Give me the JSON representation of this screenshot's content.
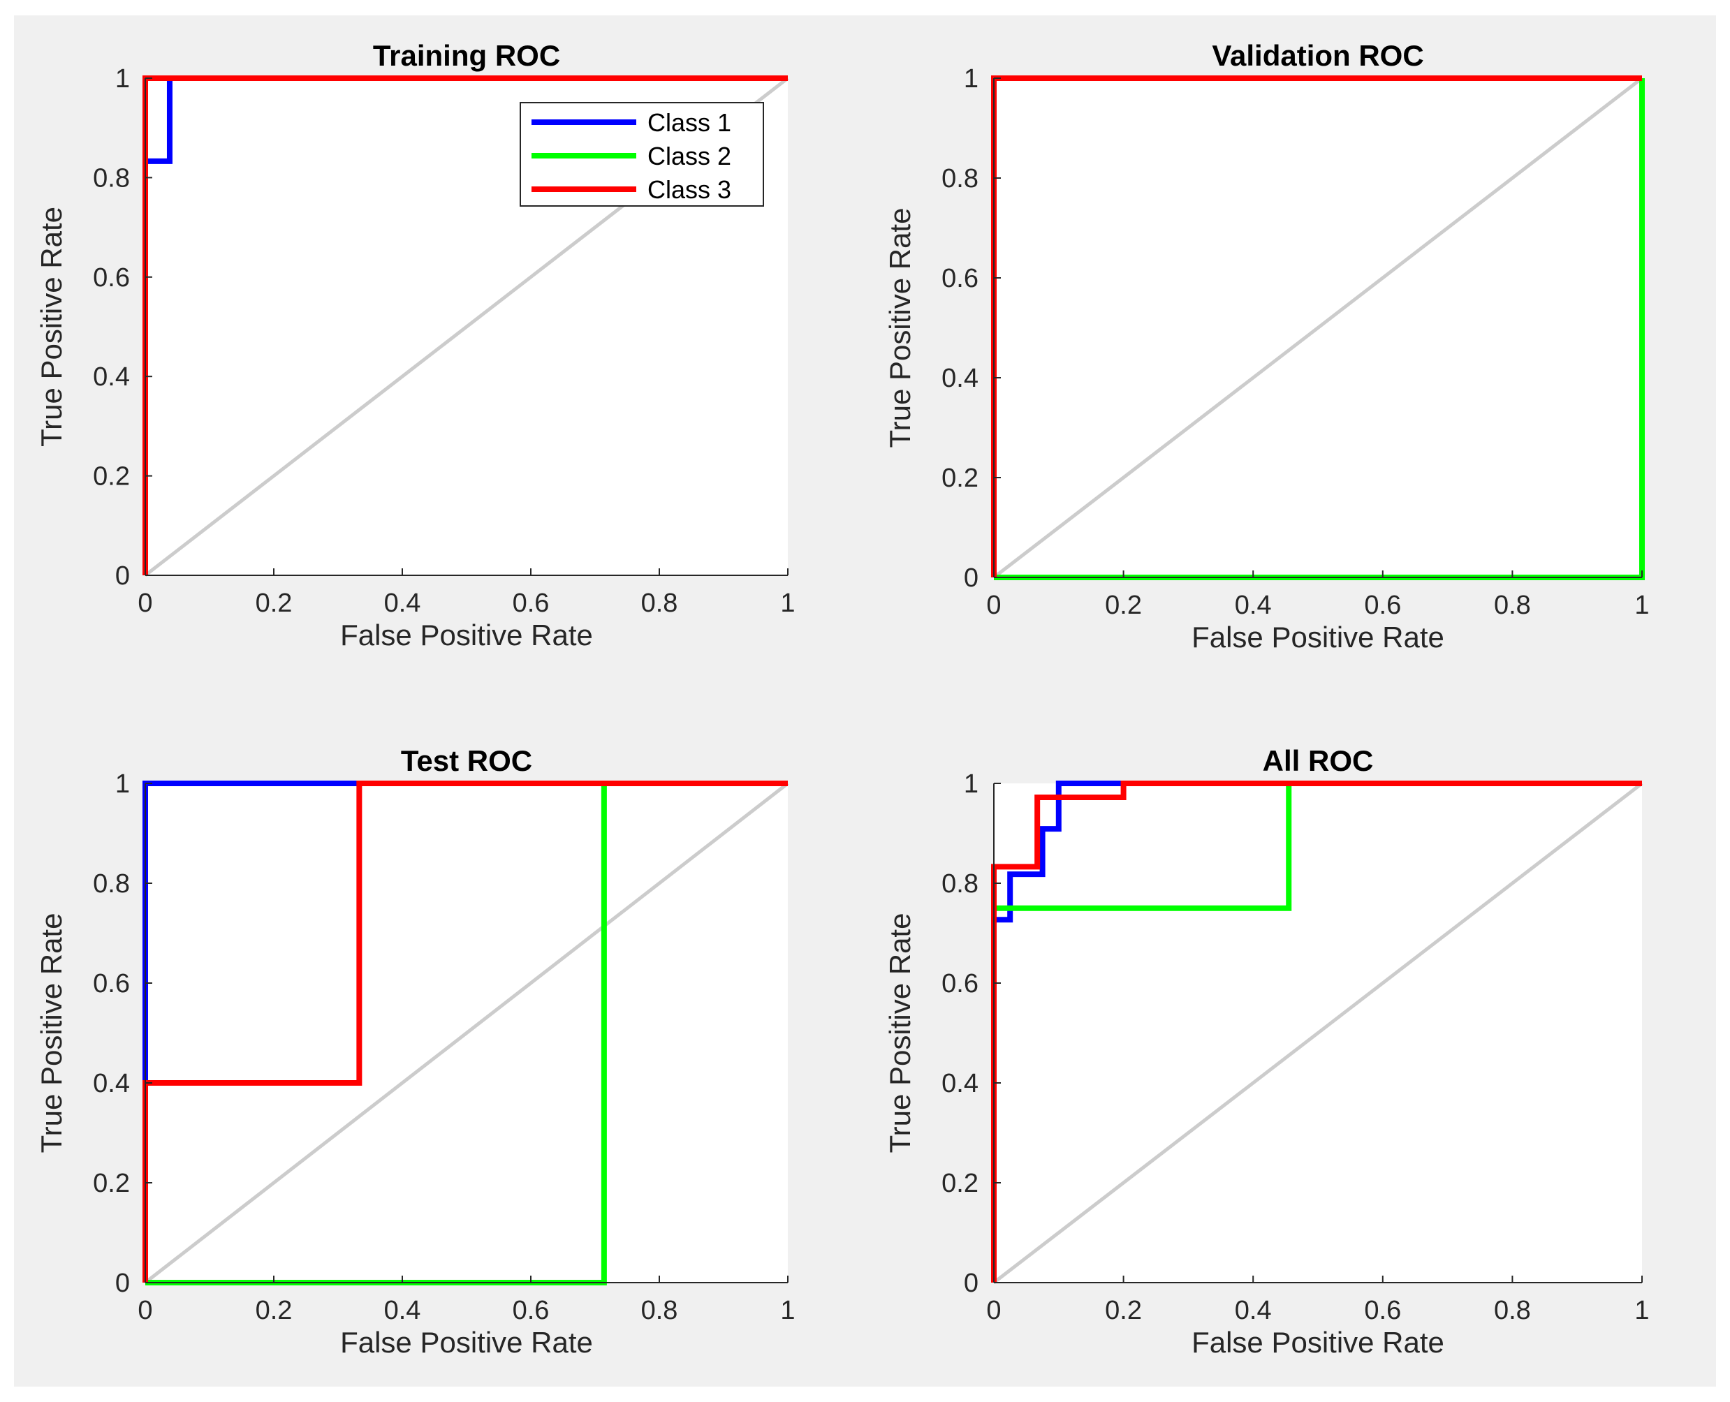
{
  "chart_data": [
    {
      "type": "line",
      "title": "Training ROC",
      "xlabel": "False Positive Rate",
      "ylabel": "True Positive Rate",
      "xlim": [
        0,
        1
      ],
      "ylim": [
        0,
        1
      ],
      "xticks": [
        "0",
        "0.2",
        "0.4",
        "0.6",
        "0.8",
        "1"
      ],
      "yticks": [
        "0",
        "0.2",
        "0.4",
        "0.6",
        "0.8",
        "1"
      ],
      "grid": false,
      "legend": {
        "position": "top-right",
        "entries": [
          "Class 1",
          "Class 2",
          "Class 3"
        ]
      },
      "series": [
        {
          "name": "Class 1",
          "color": "#0000ff",
          "points": [
            [
              0,
              0
            ],
            [
              0,
              0.833
            ],
            [
              0.038,
              0.833
            ],
            [
              0.038,
              1
            ],
            [
              1,
              1
            ]
          ]
        },
        {
          "name": "Class 2",
          "color": "#00ff00",
          "points": [
            [
              0,
              0
            ],
            [
              0,
              1
            ],
            [
              1,
              1
            ]
          ]
        },
        {
          "name": "Class 3",
          "color": "#ff0000",
          "points": [
            [
              0,
              0
            ],
            [
              0,
              1
            ],
            [
              1,
              1
            ]
          ]
        }
      ]
    },
    {
      "type": "line",
      "title": "Validation ROC",
      "xlabel": "False Positive Rate",
      "ylabel": "True Positive Rate",
      "xlim": [
        0,
        1
      ],
      "ylim": [
        0,
        1
      ],
      "xticks": [
        "0",
        "0.2",
        "0.4",
        "0.6",
        "0.8",
        "1"
      ],
      "yticks": [
        "0",
        "0.2",
        "0.4",
        "0.6",
        "0.8",
        "1"
      ],
      "grid": false,
      "series": [
        {
          "name": "Class 1",
          "color": "#0000ff",
          "points": [
            [
              0,
              0
            ],
            [
              0,
              1
            ],
            [
              1,
              1
            ]
          ]
        },
        {
          "name": "Class 2",
          "color": "#00ff00",
          "points": [
            [
              0,
              0
            ],
            [
              1,
              0
            ],
            [
              1,
              1
            ]
          ]
        },
        {
          "name": "Class 3",
          "color": "#ff0000",
          "points": [
            [
              0,
              0
            ],
            [
              0,
              1
            ],
            [
              1,
              1
            ]
          ]
        }
      ]
    },
    {
      "type": "line",
      "title": "Test ROC",
      "xlabel": "False Positive Rate",
      "ylabel": "True Positive Rate",
      "xlim": [
        0,
        1
      ],
      "ylim": [
        0,
        1
      ],
      "xticks": [
        "0",
        "0.2",
        "0.4",
        "0.6",
        "0.8",
        "1"
      ],
      "yticks": [
        "0",
        "0.2",
        "0.4",
        "0.6",
        "0.8",
        "1"
      ],
      "grid": false,
      "series": [
        {
          "name": "Class 1",
          "color": "#0000ff",
          "points": [
            [
              0,
              0
            ],
            [
              0,
              1
            ],
            [
              1,
              1
            ]
          ]
        },
        {
          "name": "Class 2",
          "color": "#00ff00",
          "points": [
            [
              0,
              0
            ],
            [
              0.714,
              0
            ],
            [
              0.714,
              1
            ],
            [
              1,
              1
            ]
          ]
        },
        {
          "name": "Class 3",
          "color": "#ff0000",
          "points": [
            [
              0,
              0
            ],
            [
              0,
              0.4
            ],
            [
              0.333,
              0.4
            ],
            [
              0.333,
              1
            ],
            [
              1,
              1
            ]
          ]
        }
      ]
    },
    {
      "type": "line",
      "title": "All ROC",
      "xlabel": "False Positive Rate",
      "ylabel": "True Positive Rate",
      "xlim": [
        0,
        1
      ],
      "ylim": [
        0,
        1
      ],
      "xticks": [
        "0",
        "0.2",
        "0.4",
        "0.6",
        "0.8",
        "1"
      ],
      "yticks": [
        "0",
        "0.2",
        "0.4",
        "0.6",
        "0.8",
        "1"
      ],
      "grid": false,
      "series": [
        {
          "name": "Class 1",
          "color": "#0000ff",
          "points": [
            [
              0,
              0
            ],
            [
              0,
              0.727
            ],
            [
              0.025,
              0.727
            ],
            [
              0.025,
              0.818
            ],
            [
              0.075,
              0.818
            ],
            [
              0.075,
              0.909
            ],
            [
              0.1,
              0.909
            ],
            [
              0.1,
              1
            ],
            [
              1,
              1
            ]
          ]
        },
        {
          "name": "Class 2",
          "color": "#00ff00",
          "points": [
            [
              0,
              0
            ],
            [
              0,
              0.75
            ],
            [
              0.455,
              0.75
            ],
            [
              0.455,
              1
            ],
            [
              1,
              1
            ]
          ]
        },
        {
          "name": "Class 3",
          "color": "#ff0000",
          "points": [
            [
              0,
              0
            ],
            [
              0,
              0.833
            ],
            [
              0.067,
              0.833
            ],
            [
              0.067,
              0.972
            ],
            [
              0.2,
              0.972
            ],
            [
              0.2,
              1
            ],
            [
              1,
              1
            ]
          ]
        }
      ]
    }
  ]
}
